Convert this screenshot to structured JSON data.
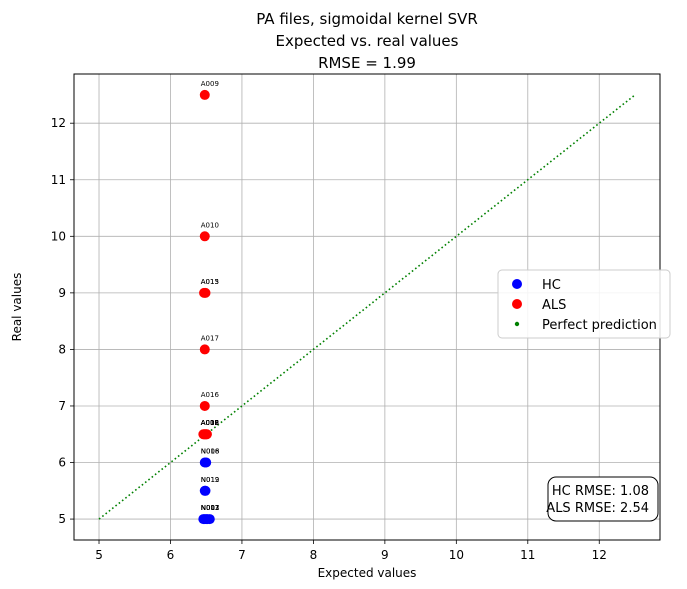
{
  "chart_data": {
    "type": "scatter",
    "title": [
      "PA files, sigmoidal kernel SVR",
      "Expected vs. real values",
      "RMSE = 1.99"
    ],
    "xlabel": "Expected values",
    "ylabel": "Real values",
    "xlim": [
      4.65,
      12.85
    ],
    "ylim": [
      4.63,
      12.87
    ],
    "xticks": [
      5,
      6,
      7,
      8,
      9,
      10,
      11,
      12
    ],
    "yticks": [
      5,
      6,
      7,
      8,
      9,
      10,
      11,
      12
    ],
    "grid": true,
    "legend_position": "center-right",
    "series": [
      {
        "name": "HC",
        "color": "#0000ff",
        "points": [
          {
            "x": 6.48,
            "y": 6.0,
            "label": "N018"
          },
          {
            "x": 6.5,
            "y": 6.0,
            "label": "N006"
          },
          {
            "x": 6.48,
            "y": 5.5,
            "label": "N012"
          },
          {
            "x": 6.49,
            "y": 5.5,
            "label": "N019"
          },
          {
            "x": 6.46,
            "y": 5.0,
            "label": "N003"
          },
          {
            "x": 6.48,
            "y": 5.0,
            "label": "N011"
          },
          {
            "x": 6.5,
            "y": 5.0,
            "label": "N002"
          },
          {
            "x": 6.52,
            "y": 5.0,
            "label": "N007"
          },
          {
            "x": 6.55,
            "y": 5.0,
            "label": "N017"
          }
        ]
      },
      {
        "name": "ALS",
        "color": "#ff0000",
        "points": [
          {
            "x": 6.48,
            "y": 12.5,
            "label": "A009"
          },
          {
            "x": 6.48,
            "y": 10.0,
            "label": "A010"
          },
          {
            "x": 6.47,
            "y": 9.0,
            "label": "A013"
          },
          {
            "x": 6.49,
            "y": 9.0,
            "label": "A015"
          },
          {
            "x": 6.48,
            "y": 8.0,
            "label": "A017"
          },
          {
            "x": 6.48,
            "y": 7.0,
            "label": "A016"
          },
          {
            "x": 6.46,
            "y": 6.5,
            "label": "A002"
          },
          {
            "x": 6.47,
            "y": 6.5,
            "label": "A005"
          },
          {
            "x": 6.48,
            "y": 6.5,
            "label": "A006"
          },
          {
            "x": 6.49,
            "y": 6.5,
            "label": "A008"
          },
          {
            "x": 6.5,
            "y": 6.5,
            "label": "A012"
          },
          {
            "x": 6.51,
            "y": 6.5,
            "label": "A018"
          }
        ]
      },
      {
        "name": "Perfect prediction",
        "color": "#008000",
        "style": "dotted-line",
        "x": [
          5,
          12.5
        ],
        "y": [
          5,
          12.5
        ]
      }
    ],
    "annotation": {
      "lines": [
        "HC RMSE: 1.08",
        "ALS RMSE: 2.54"
      ],
      "position": "bottom-right"
    }
  }
}
